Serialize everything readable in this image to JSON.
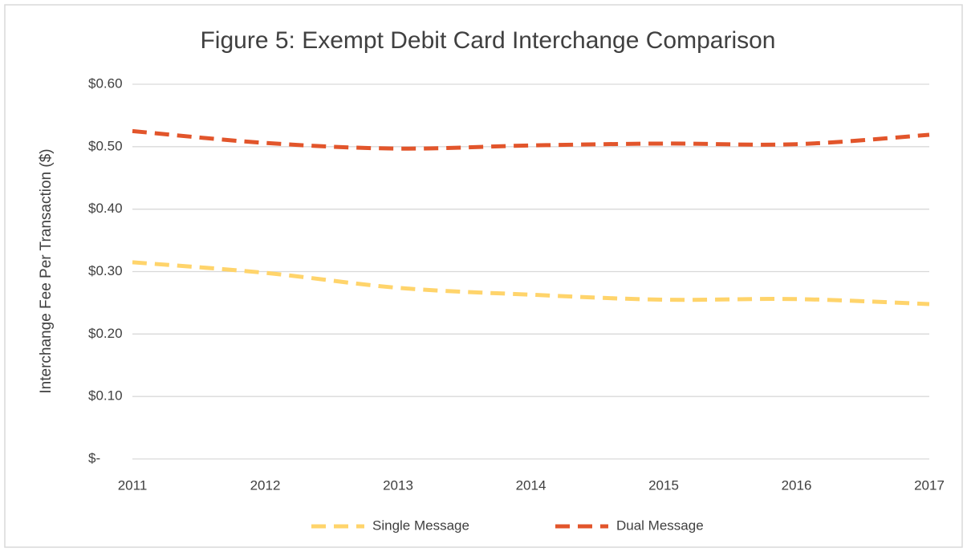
{
  "chart_data": {
    "type": "line",
    "title": "Figure 5: Exempt Debit Card Interchange Comparison",
    "y_label": "Interchange Fee Per Transaction ($)",
    "categories": [
      "2011",
      "2012",
      "2013",
      "2014",
      "2015",
      "2016",
      "2017"
    ],
    "series": [
      {
        "name": "Single Message",
        "color": "#ffd46b",
        "values": [
          0.315,
          0.298,
          0.274,
          0.263,
          0.255,
          0.256,
          0.248
        ]
      },
      {
        "name": "Dual Message",
        "color": "#e2552b",
        "values": [
          0.525,
          0.506,
          0.497,
          0.502,
          0.505,
          0.504,
          0.519
        ]
      }
    ],
    "ylim": [
      0,
      0.6
    ],
    "yticks": [
      {
        "value": 0,
        "label": "$-"
      },
      {
        "value": 0.1,
        "label": "$0.10"
      },
      {
        "value": 0.2,
        "label": "$0.20"
      },
      {
        "value": 0.3,
        "label": "$0.30"
      },
      {
        "value": 0.4,
        "label": "$0.40"
      },
      {
        "value": 0.5,
        "label": "$0.50"
      },
      {
        "value": 0.6,
        "label": "$0.60"
      }
    ],
    "grid": true,
    "smooth": true,
    "dashed": true,
    "legend": "bottom"
  }
}
